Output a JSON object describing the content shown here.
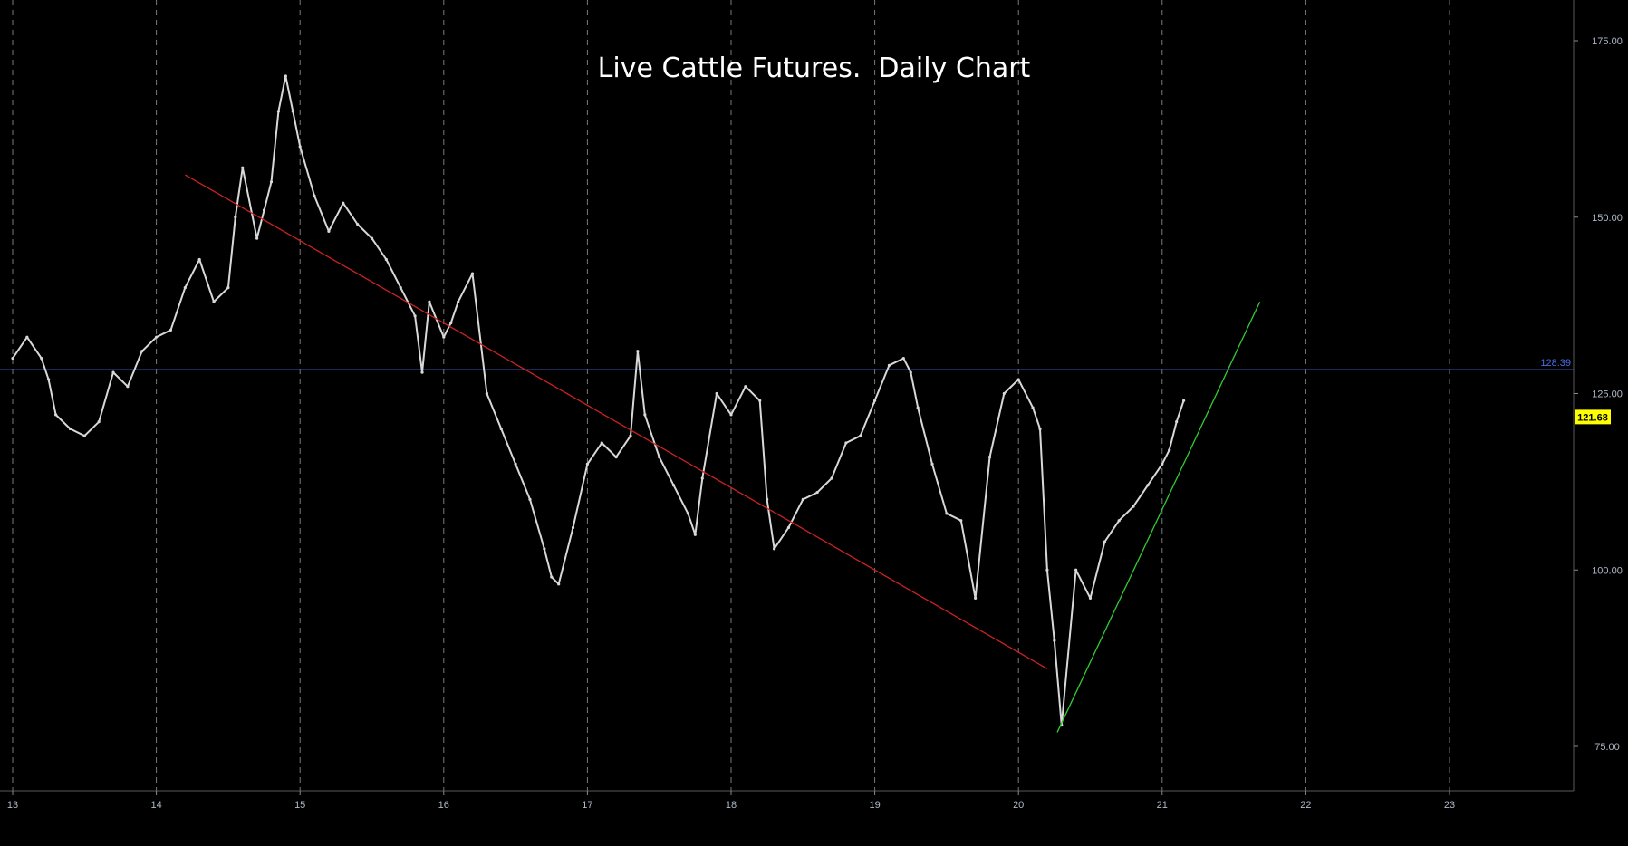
{
  "chart_data": {
    "type": "line",
    "title": "Live Cattle Futures.  Daily Chart",
    "xlabel": "",
    "ylabel": "",
    "x_ticks": [
      "13",
      "14",
      "15",
      "16",
      "17",
      "18",
      "19",
      "20",
      "21",
      "22",
      "23"
    ],
    "y_ticks": [
      "175.00",
      "150.00",
      "125.00",
      "100.00",
      "75.00"
    ],
    "xlim": [
      12.95,
      23.8
    ],
    "ylim": [
      68,
      180
    ],
    "grid": "vertical dashed",
    "series": [
      {
        "name": "",
        "color": "#d8d8d8",
        "x": [
          13.0,
          13.1,
          13.2,
          13.25,
          13.3,
          13.4,
          13.5,
          13.6,
          13.7,
          13.8,
          13.9,
          14.0,
          14.1,
          14.2,
          14.3,
          14.4,
          14.5,
          14.55,
          14.6,
          14.7,
          14.75,
          14.8,
          14.85,
          14.9,
          14.95,
          15.0,
          15.1,
          15.2,
          15.3,
          15.4,
          15.5,
          15.6,
          15.7,
          15.8,
          15.85,
          15.9,
          16.0,
          16.05,
          16.1,
          16.2,
          16.3,
          16.4,
          16.5,
          16.6,
          16.7,
          16.75,
          16.8,
          16.9,
          17.0,
          17.1,
          17.2,
          17.3,
          17.35,
          17.4,
          17.5,
          17.6,
          17.7,
          17.75,
          17.8,
          17.9,
          18.0,
          18.1,
          18.2,
          18.25,
          18.3,
          18.4,
          18.5,
          18.6,
          18.7,
          18.8,
          18.9,
          19.0,
          19.1,
          19.2,
          19.25,
          19.3,
          19.4,
          19.5,
          19.6,
          19.7,
          19.8,
          19.9,
          20.0,
          20.1,
          20.15,
          20.2,
          20.25,
          20.3,
          20.4,
          20.5,
          20.6,
          20.7,
          20.8,
          20.9,
          21.0,
          21.05,
          21.1,
          21.15
        ],
        "values": [
          130,
          133,
          130,
          127,
          122,
          120,
          119,
          121,
          128,
          126,
          131,
          133,
          134,
          140,
          144,
          138,
          140,
          150,
          157,
          147,
          151,
          155,
          165,
          170,
          165,
          160,
          153,
          148,
          152,
          149,
          147,
          144,
          140,
          136,
          128,
          138,
          133,
          135,
          138,
          142,
          125,
          120,
          115,
          110,
          103,
          99,
          98,
          106,
          115,
          118,
          116,
          119,
          131,
          122,
          116,
          112,
          108,
          105,
          113,
          125,
          122,
          126,
          124,
          110,
          103,
          106,
          110,
          111,
          113,
          118,
          119,
          124,
          129,
          130,
          128,
          123,
          115,
          108,
          107,
          96,
          116,
          125,
          127,
          123,
          120,
          100,
          90,
          78,
          100,
          96,
          104,
          107,
          109,
          112,
          115,
          117,
          121,
          124
        ]
      }
    ],
    "horizontal_line": {
      "value": 128.39,
      "label": "128.39",
      "color": "#4a6ce8"
    },
    "last_price": {
      "value": 121.68,
      "label": "121.68",
      "color": "#ffff00"
    },
    "trendlines": [
      {
        "name": "",
        "color": "#cc2222",
        "x": [
          14.2,
          20.2
        ],
        "y": [
          156,
          86
        ]
      },
      {
        "name": "",
        "color": "#33cc33",
        "x": [
          20.27,
          21.68
        ],
        "y": [
          77,
          138
        ]
      }
    ]
  }
}
